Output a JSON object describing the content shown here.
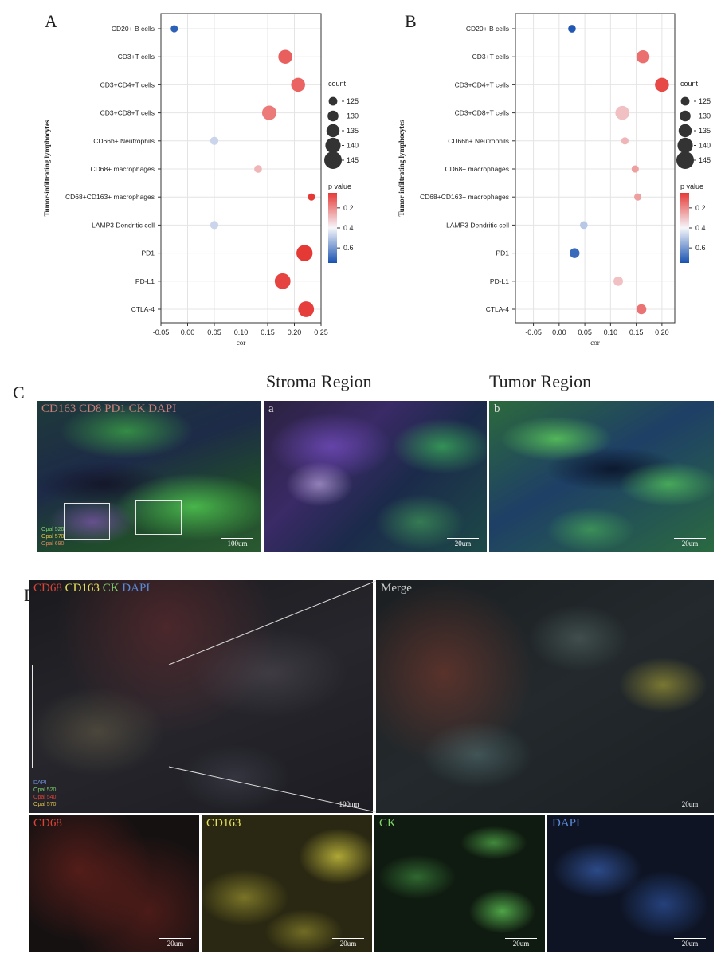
{
  "figure": {
    "panel_labels": [
      "A",
      "B",
      "C",
      "D"
    ]
  },
  "chart_data": [
    {
      "type": "scatter",
      "panel": "A",
      "ylabel": "Tumor-infiltrating lymphocytes",
      "xlabel": "cor",
      "xlim": [
        -0.05,
        0.25
      ],
      "xticks": [
        "-0.05",
        "0.00",
        "0.05",
        "0.10",
        "0.15",
        "0.20",
        "0.25"
      ],
      "xtick_values": [
        -0.05,
        0.0,
        0.05,
        0.1,
        0.15,
        0.2,
        0.25
      ],
      "categories": [
        "CD20+ B cells",
        "CD3+T cells",
        "CD3+CD4+T cells",
        "CD3+CD8+T cells",
        "CD66b+ Neutrophils",
        "CD68+ macrophages",
        "CD68+CD163+ macrophages",
        "LAMP3 Dendritic cell",
        "PD1",
        "PD-L1",
        "CTLA-4"
      ],
      "cor": [
        -0.025,
        0.183,
        0.207,
        0.153,
        0.05,
        0.132,
        0.232,
        0.05,
        0.219,
        0.178,
        0.222
      ],
      "count": [
        122,
        137,
        137,
        138,
        124,
        123,
        122,
        124,
        142,
        141,
        141
      ],
      "p_value": [
        0.72,
        0.12,
        0.13,
        0.17,
        0.47,
        0.28,
        0.05,
        0.47,
        0.04,
        0.07,
        0.06
      ],
      "grid": true,
      "legend_count": {
        "title": "count",
        "values": [
          125,
          130,
          135,
          140,
          145
        ]
      },
      "legend_p": {
        "title": "p value",
        "ticks": [
          "0.2",
          "0.4",
          "0.6"
        ],
        "tick_values": [
          0.2,
          0.4,
          0.6
        ],
        "range": [
          0.05,
          0.75
        ]
      }
    },
    {
      "type": "scatter",
      "panel": "B",
      "ylabel": "Tumor-infiltrating lymphocytes",
      "xlabel": "cor",
      "xlim": [
        -0.085,
        0.225
      ],
      "xticks": [
        "-0.05",
        "0.00",
        "0.05",
        "0.10",
        "0.15",
        "0.20"
      ],
      "xtick_values": [
        -0.05,
        0.0,
        0.05,
        0.1,
        0.15,
        0.2
      ],
      "categories": [
        "CD20+ B cells",
        "CD3+T cells",
        "CD3+CD4+T cells",
        "CD3+CD8+T cells",
        "CD66b+ Neutrophils",
        "CD68+ macrophages",
        "CD68+CD163+ macrophages",
        "LAMP3 Dendritic cell",
        "PD1",
        "PD-L1",
        "CTLA-4"
      ],
      "cor": [
        0.025,
        0.163,
        0.2,
        0.123,
        0.128,
        0.148,
        0.153,
        0.048,
        0.03,
        0.115,
        0.16
      ],
      "count": [
        123,
        135,
        137,
        137,
        122,
        122,
        122,
        123,
        128,
        127,
        128
      ],
      "p_value": [
        0.74,
        0.15,
        0.08,
        0.3,
        0.28,
        0.24,
        0.24,
        0.5,
        0.7,
        0.3,
        0.16
      ],
      "grid": true,
      "legend_count": {
        "title": "count",
        "values": [
          125,
          130,
          135,
          140,
          145
        ]
      },
      "legend_p": {
        "title": "p value",
        "ticks": [
          "0.2",
          "0.4",
          "0.6"
        ],
        "tick_values": [
          0.2,
          0.4,
          0.6
        ],
        "range": [
          0.05,
          0.75
        ]
      }
    }
  ],
  "colors": {
    "p_low": "#e53935",
    "p_mid": "#f6f6fb",
    "p_high": "#1a53b0",
    "axis": "#333333",
    "grid": "#e4e4e4"
  },
  "panel_c": {
    "region_titles": [
      "Stroma Region",
      "Tumor Region"
    ],
    "overview_label": "CD163 CD8 PD1 CK DAPI",
    "overview_channels": [
      "Opal 520",
      "Opal 570",
      "Opal 690"
    ],
    "scale_overview": "100um",
    "stroma_label": "a",
    "tumor_label": "b",
    "scale_stroma": "20um",
    "scale_tumor": "20um"
  },
  "panel_d": {
    "overview_label": [
      "CD68",
      "CD163",
      "CK",
      "DAPI"
    ],
    "overview_label_colors": [
      "#d9453a",
      "#e8e25a",
      "#7fd46a",
      "#5a8ad8"
    ],
    "overview_channels": [
      "DAPI",
      "Opal 520",
      "Opal 540",
      "Opal 570"
    ],
    "overview_channel_colors": [
      "#6f8fd8",
      "#7fd46a",
      "#d9453a",
      "#e0c24a"
    ],
    "scale_overview": "100um",
    "merge_label": "Merge",
    "scale_merge": "20um",
    "tiles": [
      {
        "label": "CD68",
        "color": "#d9453a",
        "scale": "20um"
      },
      {
        "label": "CD163",
        "color": "#e8e25a",
        "scale": "20um"
      },
      {
        "label": "CK",
        "color": "#7fd46a",
        "scale": "20um"
      },
      {
        "label": "DAPI",
        "color": "#5a8ad8",
        "scale": "20um"
      }
    ]
  }
}
